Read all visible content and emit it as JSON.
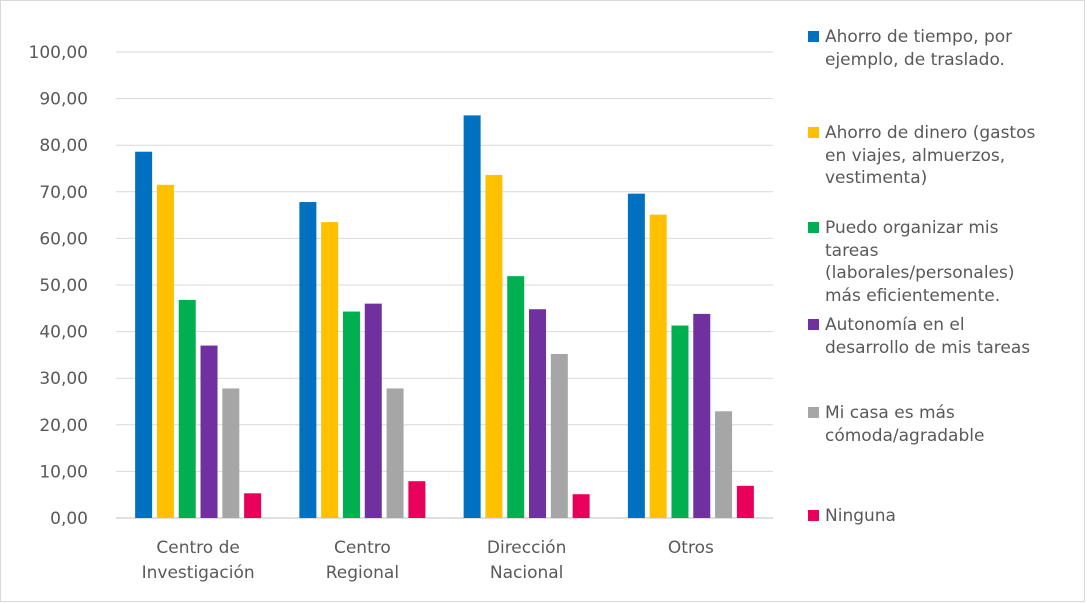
{
  "chart_data": {
    "type": "bar",
    "categories": [
      [
        "Centro de",
        "Investigación"
      ],
      [
        "Centro",
        "Regional"
      ],
      [
        "Dirección",
        "Nacional"
      ],
      [
        "Otros"
      ]
    ],
    "series": [
      {
        "name": "Ahorro de tiempo, por ejemplo, de traslado.",
        "lines": [
          "Ahorro de tiempo, por",
          "ejemplo, de traslado."
        ],
        "color": "#0070c0",
        "values": [
          78.6,
          67.8,
          86.4,
          69.6
        ]
      },
      {
        "name": "Ahorro de dinero (gastos en viajes, almuerzos, vestimenta)",
        "lines": [
          "Ahorro de dinero (gastos",
          "en viajes, almuerzos,",
          "vestimenta)"
        ],
        "color": "#ffc000",
        "values": [
          71.5,
          63.5,
          73.6,
          65.1
        ]
      },
      {
        "name": "Puedo organizar mis tareas (laborales/personales) más eficientemente.",
        "lines": [
          "Puedo organizar mis",
          "tareas",
          "(laborales/personales)",
          "más eficientemente."
        ],
        "color": "#00b050",
        "values": [
          46.8,
          44.3,
          51.9,
          41.3
        ]
      },
      {
        "name": "Autonomía en el desarrollo de mis tareas",
        "lines": [
          "Autonomía en el",
          "desarrollo de mis tareas"
        ],
        "color": "#7030a0",
        "values": [
          37.0,
          46.0,
          44.8,
          43.8
        ]
      },
      {
        "name": "Mi casa es más cómoda/agradable",
        "lines": [
          "Mi casa es más",
          "cómoda/agradable"
        ],
        "color": "#a6a6a6",
        "values": [
          27.8,
          27.8,
          35.2,
          22.9
        ]
      },
      {
        "name": "Ninguna",
        "lines": [
          "Ninguna"
        ],
        "color": "#e8005a",
        "values": [
          5.3,
          7.9,
          5.1,
          6.9
        ]
      }
    ],
    "ylim": [
      0,
      100
    ],
    "yticks": [
      "0,00",
      "10,00",
      "20,00",
      "30,00",
      "40,00",
      "50,00",
      "60,00",
      "70,00",
      "80,00",
      "90,00",
      "100,00"
    ],
    "grid": true,
    "legend_position": "right"
  }
}
